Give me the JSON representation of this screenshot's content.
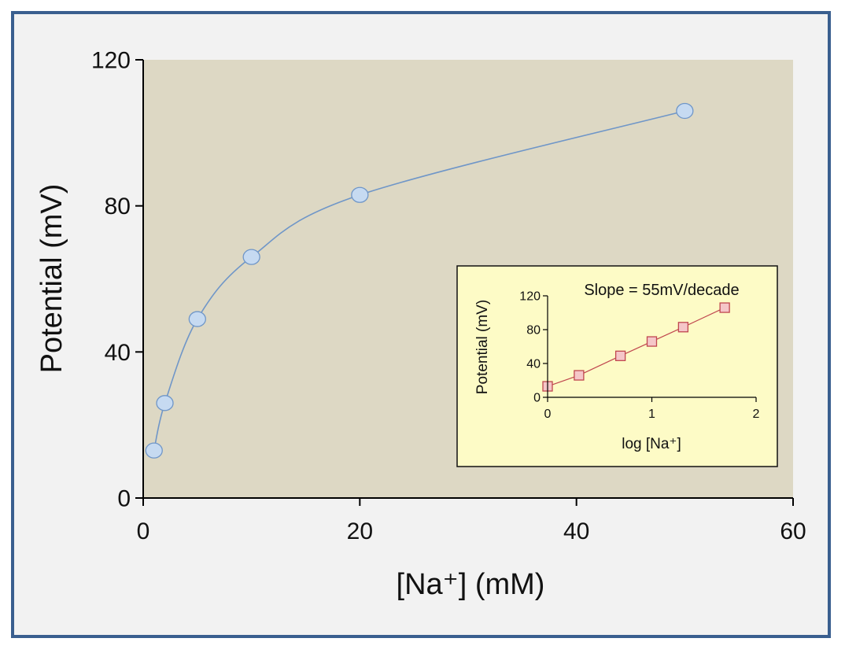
{
  "chart_data": [
    {
      "type": "scatter",
      "xlabel": "[Na⁺] (mM)",
      "ylabel": "Potential (mV)",
      "xlim": [
        0,
        60
      ],
      "ylim": [
        0,
        120
      ],
      "xticks": [
        "0",
        "20",
        "40",
        "60"
      ],
      "yticks": [
        "0",
        "40",
        "80",
        "120"
      ],
      "series": [
        {
          "x": [
            1,
            2,
            5,
            10,
            20,
            50
          ],
          "y": [
            13,
            26,
            49,
            66,
            83,
            106
          ]
        }
      ],
      "colors": {
        "plot_bg": "#ddd8c4",
        "marker_fill": "#c6daf1",
        "marker_stroke": "#6f96c8",
        "line": "#6f96c8"
      }
    },
    {
      "type": "scatter",
      "title": "Slope = 55mV/decade",
      "xlabel": "log [Na⁺]",
      "ylabel": "Potential (mV)",
      "xlim": [
        0,
        2
      ],
      "ylim": [
        0,
        120
      ],
      "xticks": [
        "0",
        "1",
        "2"
      ],
      "yticks": [
        "0",
        "40",
        "80",
        "120"
      ],
      "series": [
        {
          "x": [
            0,
            0.301,
            0.699,
            1,
            1.301,
            1.699
          ],
          "y": [
            13,
            26,
            49,
            66,
            83,
            106
          ]
        }
      ],
      "colors": {
        "panel_bg": "#fdfbc6",
        "marker_fill": "#f5c6c8",
        "marker_stroke": "#c0474f",
        "line": "#c0474f"
      }
    }
  ]
}
